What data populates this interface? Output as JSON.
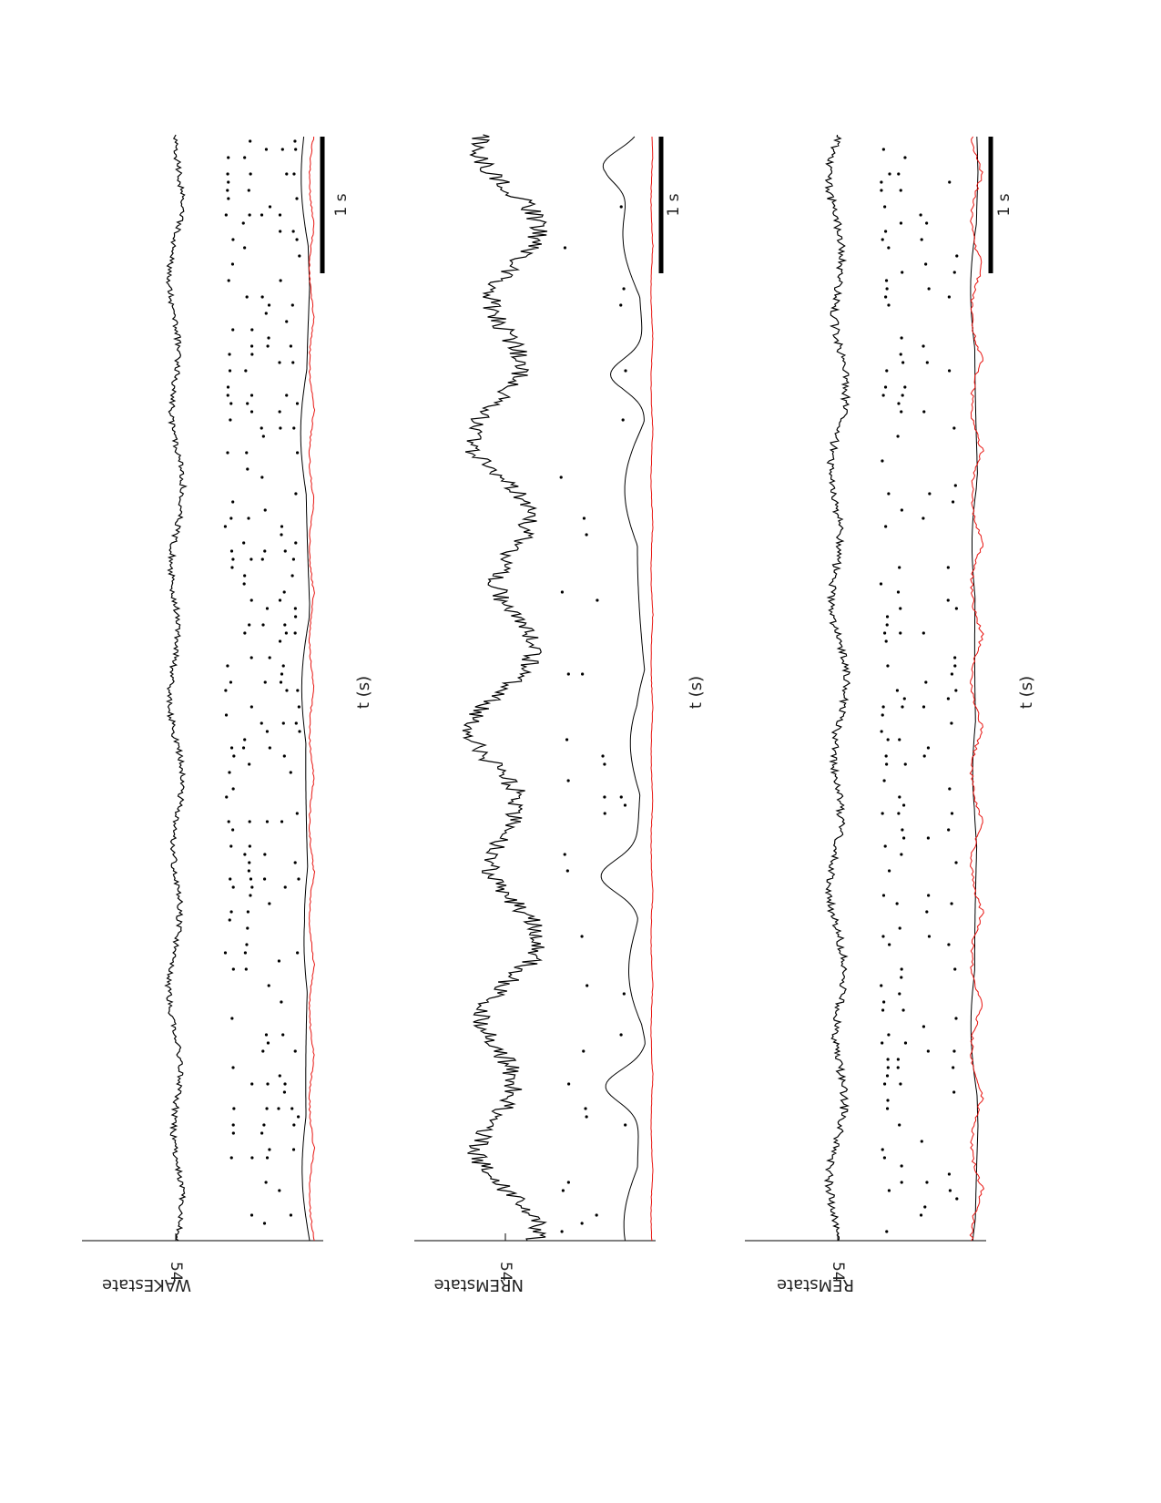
{
  "page": {
    "orientation": "rotated 90 degrees clockwise"
  },
  "colors": {
    "trace": "#000000",
    "red_trace": "#e8130f",
    "axis": "#000000"
  },
  "chart_data": [
    {
      "type": "line",
      "state_label": "WAKEstate",
      "ytick_label": "54",
      "xlabel": "t (s)",
      "scale_bar_label": "1 s",
      "series": [
        {
          "role": "lfp-trace",
          "color": "#000000",
          "character": "fast low-amplitude oscillations, larger rhythmic waves in middle segment"
        },
        {
          "role": "spike-raster",
          "color": "#000000",
          "character": "dense rows of dots"
        },
        {
          "role": "smoothed-rate-black",
          "color": "#000000"
        },
        {
          "role": "smoothed-rate-red",
          "color": "#e8130f"
        }
      ]
    },
    {
      "type": "line",
      "state_label": "NREMstate",
      "ytick_label": "54",
      "xlabel": "t (s)",
      "scale_bar_label": "1 s",
      "series": [
        {
          "role": "lfp-trace",
          "color": "#000000",
          "character": "large slow waves"
        },
        {
          "role": "spike-raster",
          "color": "#000000",
          "character": "sparse clusters"
        },
        {
          "role": "smoothed-rate-black",
          "color": "#000000",
          "character": "occasional large peaks"
        },
        {
          "role": "smoothed-rate-red",
          "color": "#e8130f",
          "character": "nearly flat"
        }
      ]
    },
    {
      "type": "line",
      "state_label": "REMstate",
      "ytick_label": "54",
      "xlabel": "t (s)",
      "scale_bar_label": "1 s",
      "series": [
        {
          "role": "lfp-trace",
          "color": "#000000",
          "character": "moderate theta-like oscillations"
        },
        {
          "role": "spike-raster",
          "color": "#000000",
          "character": "long regular rows of dots"
        },
        {
          "role": "smoothed-rate-black",
          "color": "#000000"
        },
        {
          "role": "smoothed-rate-red",
          "color": "#e8130f",
          "character": "more variable"
        }
      ]
    }
  ]
}
